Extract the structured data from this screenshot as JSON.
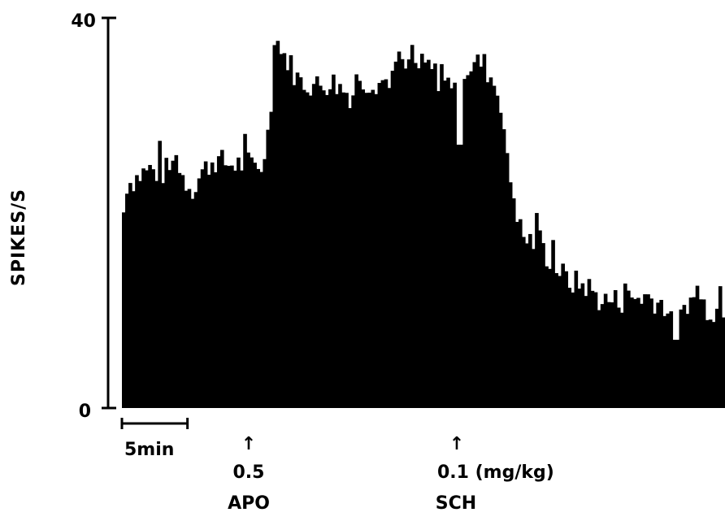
{
  "chart_data": {
    "type": "bar",
    "ylabel": "SPIKES/S",
    "ylim": [
      0,
      40
    ],
    "y_ticks": [
      {
        "value": 0,
        "label": "0"
      },
      {
        "value": 40,
        "label": "40"
      }
    ],
    "x_unit": "min",
    "xlim": [
      0,
      46.0
    ],
    "scale_bar": {
      "length": 5,
      "label": "5min"
    },
    "bin_width": 0.25,
    "annotations": [
      {
        "x": 9.5,
        "arrow": "↑",
        "dose": "0.5",
        "drug": "APO"
      },
      {
        "x": 26.0,
        "arrow": "↑",
        "dose": "0.1 (mg/kg)",
        "drug": "SCH"
      }
    ],
    "profile": [
      [
        0.0,
        18.0
      ],
      [
        0.3,
        23.0
      ],
      [
        1.0,
        23.5
      ],
      [
        2.0,
        24.5
      ],
      [
        3.0,
        24.0
      ],
      [
        4.0,
        25.0
      ],
      [
        5.0,
        23.0
      ],
      [
        5.5,
        22.5
      ],
      [
        6.0,
        24.0
      ],
      [
        7.0,
        25.5
      ],
      [
        8.0,
        25.0
      ],
      [
        9.0,
        25.0
      ],
      [
        10.0,
        25.0
      ],
      [
        11.0,
        25.0
      ],
      [
        11.3,
        30.0
      ],
      [
        11.6,
        37.0
      ],
      [
        12.5,
        36.0
      ],
      [
        13.5,
        33.5
      ],
      [
        15.0,
        33.0
      ],
      [
        16.0,
        33.5
      ],
      [
        17.5,
        32.0
      ],
      [
        18.5,
        33.5
      ],
      [
        20.0,
        33.5
      ],
      [
        21.0,
        34.5
      ],
      [
        22.0,
        35.0
      ],
      [
        23.5,
        35.0
      ],
      [
        24.5,
        33.0
      ],
      [
        25.5,
        34.0
      ],
      [
        26.5,
        35.0
      ],
      [
        27.5,
        35.5
      ],
      [
        28.5,
        33.0
      ],
      [
        29.0,
        31.0
      ],
      [
        29.3,
        25.5
      ],
      [
        30.0,
        21.0
      ],
      [
        30.5,
        17.5
      ],
      [
        31.5,
        17.0
      ],
      [
        32.5,
        15.5
      ],
      [
        34.0,
        13.0
      ],
      [
        35.5,
        12.5
      ],
      [
        36.5,
        11.0
      ],
      [
        38.0,
        11.0
      ],
      [
        40.0,
        11.5
      ],
      [
        41.5,
        10.5
      ],
      [
        42.2,
        7.0
      ],
      [
        43.0,
        11.0
      ],
      [
        44.0,
        11.0
      ],
      [
        45.0,
        10.0
      ],
      [
        46.0,
        10.5
      ]
    ],
    "dips": [
      [
        25.6,
        27.0
      ],
      [
        42.1,
        7.0
      ]
    ],
    "noise_amplitude": 1.4,
    "noise_seed": 7,
    "colors": {
      "bars": "#000000",
      "axis": "#000000",
      "background": "#ffffff"
    }
  }
}
